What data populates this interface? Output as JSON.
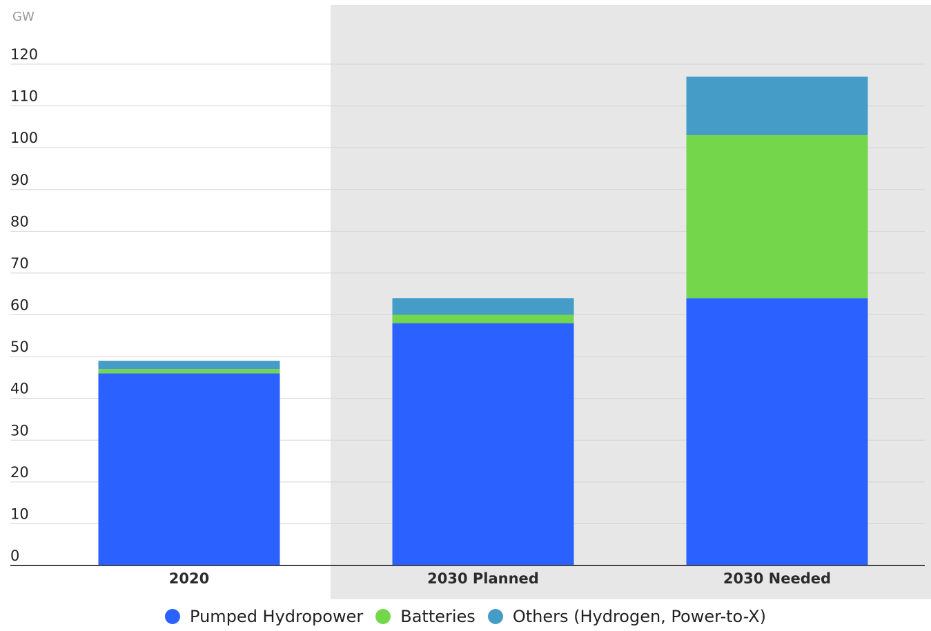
{
  "chart_data": {
    "type": "bar",
    "stacked": true,
    "unit_label": "GW",
    "categories": [
      "2020",
      "2030 Planned",
      "2030 Needed"
    ],
    "series": [
      {
        "name": "Pumped Hydropower",
        "color": "#2b62ff",
        "values": [
          46,
          58,
          64
        ]
      },
      {
        "name": "Batteries",
        "color": "#73d64b",
        "values": [
          1,
          2,
          39
        ]
      },
      {
        "name": "Others (Hydrogen, Power-to-X)",
        "color": "#459dc7",
        "values": [
          2,
          4,
          14
        ]
      }
    ],
    "ylim": [
      0,
      120
    ],
    "yticks": [
      0,
      10,
      20,
      30,
      40,
      50,
      60,
      70,
      80,
      90,
      100,
      110,
      120
    ],
    "grid": true,
    "legend_position": "bottom",
    "highlight_region": {
      "from_category": "2030 Planned",
      "to_category": "2030 Needed",
      "color": "#e7e7e7"
    }
  }
}
